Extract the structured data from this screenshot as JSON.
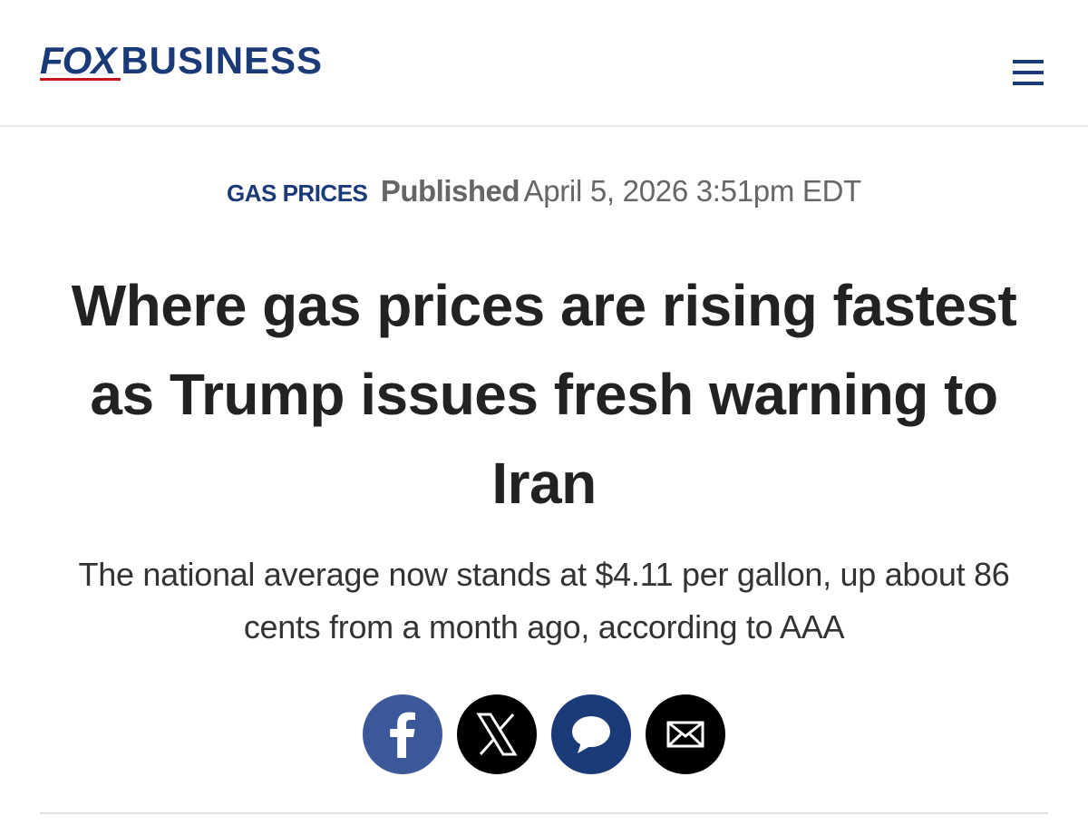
{
  "header": {
    "logo": {
      "brand": "FOX",
      "section": "BUSINESS"
    }
  },
  "article": {
    "category": "GAS PRICES",
    "published_label": "Published",
    "published_date": "April 5, 2026 3:51pm EDT",
    "headline": "Where gas prices are rising fastest as Trump issues fresh warning to Iran",
    "subheadline": "The national average now stands at $4.11 per gallon, up about 86 cents from a month ago, according to AAA"
  }
}
